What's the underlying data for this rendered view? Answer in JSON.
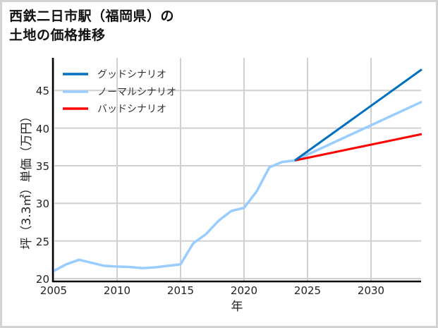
{
  "title": {
    "line1": "西鉄二日市駅（福岡県）の",
    "line2": "土地の価格推移"
  },
  "chart_data": {
    "type": "line",
    "title": "西鉄二日市駅（福岡県）の土地の価格推移",
    "xlabel": "年",
    "ylabel": "坪（3.3㎡）単価（万円）",
    "xlim": [
      2005,
      2034
    ],
    "ylim": [
      20,
      48
    ],
    "xticks": [
      2005,
      2010,
      2015,
      2020,
      2025,
      2030
    ],
    "yticks": [
      20,
      25,
      30,
      35,
      40,
      45
    ],
    "grid": true,
    "legend_position": "upper left",
    "series": [
      {
        "name": "グッドシナリオ",
        "color": "#0070c0",
        "x": [
          2024,
          2034
        ],
        "values": [
          35.7,
          47.8
        ]
      },
      {
        "name": "ノーマルシナリオ",
        "color": "#99ccff",
        "x": [
          2005,
          2006,
          2007,
          2008,
          2009,
          2010,
          2011,
          2012,
          2013,
          2014,
          2015,
          2016,
          2017,
          2018,
          2019,
          2020,
          2021,
          2022,
          2023,
          2024,
          2034
        ],
        "values": [
          21.0,
          21.9,
          22.5,
          22.1,
          21.7,
          21.6,
          21.55,
          21.4,
          21.5,
          21.7,
          21.9,
          24.7,
          25.9,
          27.7,
          29.0,
          29.4,
          31.6,
          34.8,
          35.5,
          35.7,
          43.5
        ]
      },
      {
        "name": "バッドシナリオ",
        "color": "#ff0000",
        "x": [
          2024,
          2034
        ],
        "values": [
          35.7,
          39.2
        ]
      }
    ]
  },
  "legend": {
    "good": "グッドシナリオ",
    "normal": "ノーマルシナリオ",
    "bad": "バッドシナリオ"
  },
  "axes": {
    "xlabel": "年",
    "ylabel": "坪（3.3㎡）単価（万円）",
    "xticks": [
      "2005",
      "2010",
      "2015",
      "2020",
      "2025",
      "2030"
    ],
    "yticks": [
      "20",
      "25",
      "30",
      "35",
      "40",
      "45"
    ]
  }
}
